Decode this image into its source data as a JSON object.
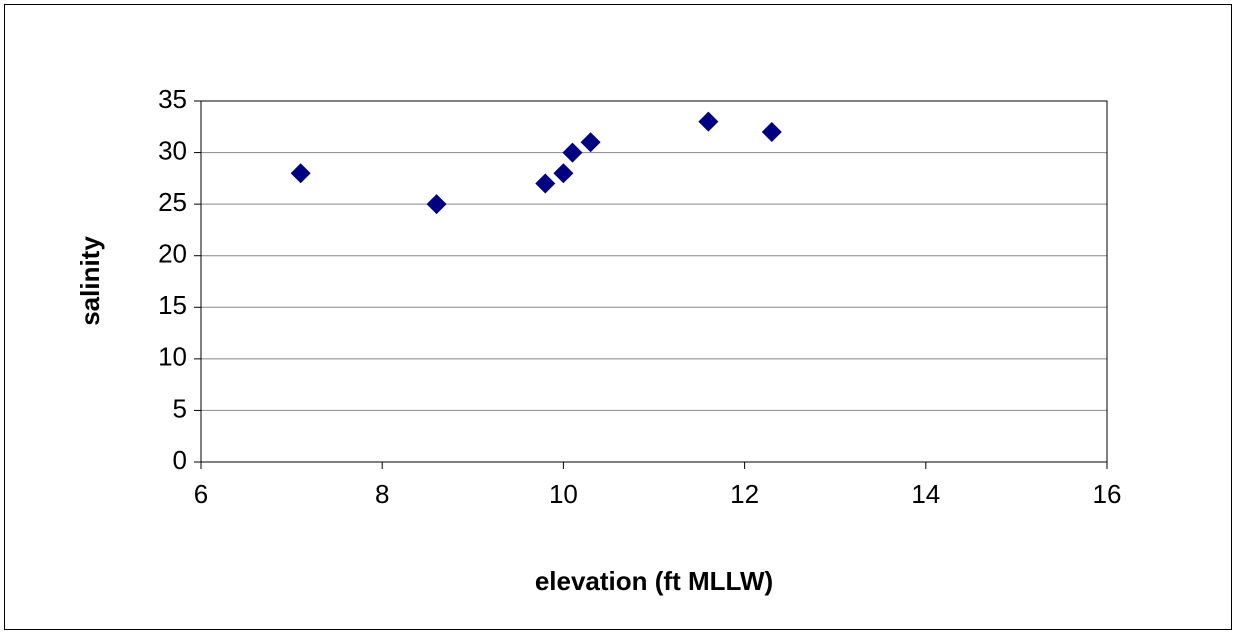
{
  "chart_data": {
    "type": "scatter",
    "x_label": "elevation (ft MLLW)",
    "y_label": "salinity",
    "x": [
      7.1,
      8.6,
      9.8,
      10.0,
      10.1,
      10.3,
      11.6,
      12.3
    ],
    "values": [
      28,
      25,
      27,
      28,
      30,
      31,
      33,
      32
    ],
    "color": "#000080",
    "xlim": [
      6,
      16
    ],
    "xticks": [
      6,
      8,
      10,
      12,
      14,
      16
    ],
    "ylim": [
      0,
      35
    ],
    "yticks": [
      0,
      5,
      10,
      15,
      20,
      25,
      30,
      35
    ],
    "grid": true
  }
}
